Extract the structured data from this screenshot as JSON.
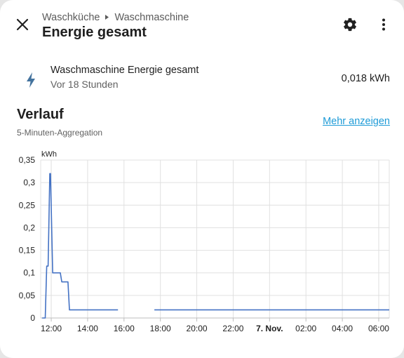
{
  "header": {
    "breadcrumb": [
      "Waschküche",
      "Waschmaschine"
    ],
    "title": "Energie gesamt"
  },
  "entity": {
    "name": "Waschmaschine Energie gesamt",
    "last_changed": "Vor 18 Stunden",
    "value": "0,018 kWh",
    "icon": "flash-icon"
  },
  "history": {
    "heading": "Verlauf",
    "aggregation": "5-Minuten-Aggregation",
    "more_link": "Mehr anzeigen"
  },
  "colors": {
    "accent": "#1e9bd7",
    "series": "#4472c4",
    "icon": "#44739e"
  },
  "chart_data": {
    "type": "line",
    "unit_label": "kWh",
    "x_tick_labels": [
      "12:00",
      "14:00",
      "16:00",
      "18:00",
      "20:00",
      "22:00",
      "7. Nov.",
      "02:00",
      "04:00",
      "06:00"
    ],
    "bold_tick": "7. Nov.",
    "y_tick_labels": [
      "0",
      "0,05",
      "0,1",
      "0,15",
      "0,2",
      "0,25",
      "0,3",
      "0,35"
    ],
    "ylim": [
      0,
      0.35
    ],
    "xlim_hours": [
      11.42,
      30.58
    ],
    "grid": true,
    "segments": [
      [
        [
          11.5,
          0
        ],
        [
          11.67,
          0
        ],
        [
          11.75,
          0.115
        ],
        [
          11.83,
          0.115
        ],
        [
          11.92,
          0.32
        ],
        [
          11.96,
          0.32
        ],
        [
          12.08,
          0.1
        ],
        [
          12.5,
          0.1
        ],
        [
          12.58,
          0.08
        ],
        [
          12.92,
          0.08
        ],
        [
          13.0,
          0.018
        ],
        [
          15.67,
          0.018
        ]
      ],
      [
        [
          17.67,
          0.018
        ],
        [
          30.58,
          0.018
        ]
      ]
    ]
  }
}
